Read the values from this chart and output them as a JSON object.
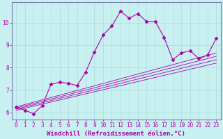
{
  "title": "",
  "xlabel": "Windchill (Refroidissement éolien,°C)",
  "ylabel": "",
  "bg_color": "#c8f0f0",
  "line_color": "#aa00aa",
  "grid_color": "#aadddd",
  "axis_color": "#7777aa",
  "xlim": [
    -0.5,
    23.5
  ],
  "ylim": [
    5.7,
    10.9
  ],
  "yticks": [
    6,
    7,
    8,
    9,
    10
  ],
  "xticks": [
    0,
    1,
    2,
    3,
    4,
    5,
    6,
    7,
    8,
    9,
    10,
    11,
    12,
    13,
    14,
    15,
    16,
    17,
    18,
    19,
    20,
    21,
    22,
    23
  ],
  "series": [
    {
      "x": [
        0,
        1,
        2,
        3,
        4,
        5,
        6,
        7,
        8,
        9,
        10,
        11,
        12,
        13,
        14,
        15,
        16,
        17,
        18,
        19,
        20,
        21,
        22,
        23
      ],
      "y": [
        6.25,
        6.1,
        5.95,
        6.3,
        7.25,
        7.35,
        7.3,
        7.2,
        7.8,
        8.7,
        9.45,
        9.85,
        10.5,
        10.2,
        10.4,
        10.05,
        10.05,
        9.35,
        8.35,
        8.65,
        8.75,
        8.4,
        8.55,
        9.3
      ],
      "marker": "D",
      "markersize": 2.5
    },
    {
      "x": [
        0,
        23
      ],
      "y": [
        6.1,
        8.2
      ]
    },
    {
      "x": [
        0,
        23
      ],
      "y": [
        6.15,
        8.35
      ]
    },
    {
      "x": [
        0,
        23
      ],
      "y": [
        6.2,
        8.5
      ]
    },
    {
      "x": [
        0,
        23
      ],
      "y": [
        6.25,
        8.65
      ]
    }
  ],
  "tick_fontsize": 5.5,
  "label_fontsize": 6.5
}
